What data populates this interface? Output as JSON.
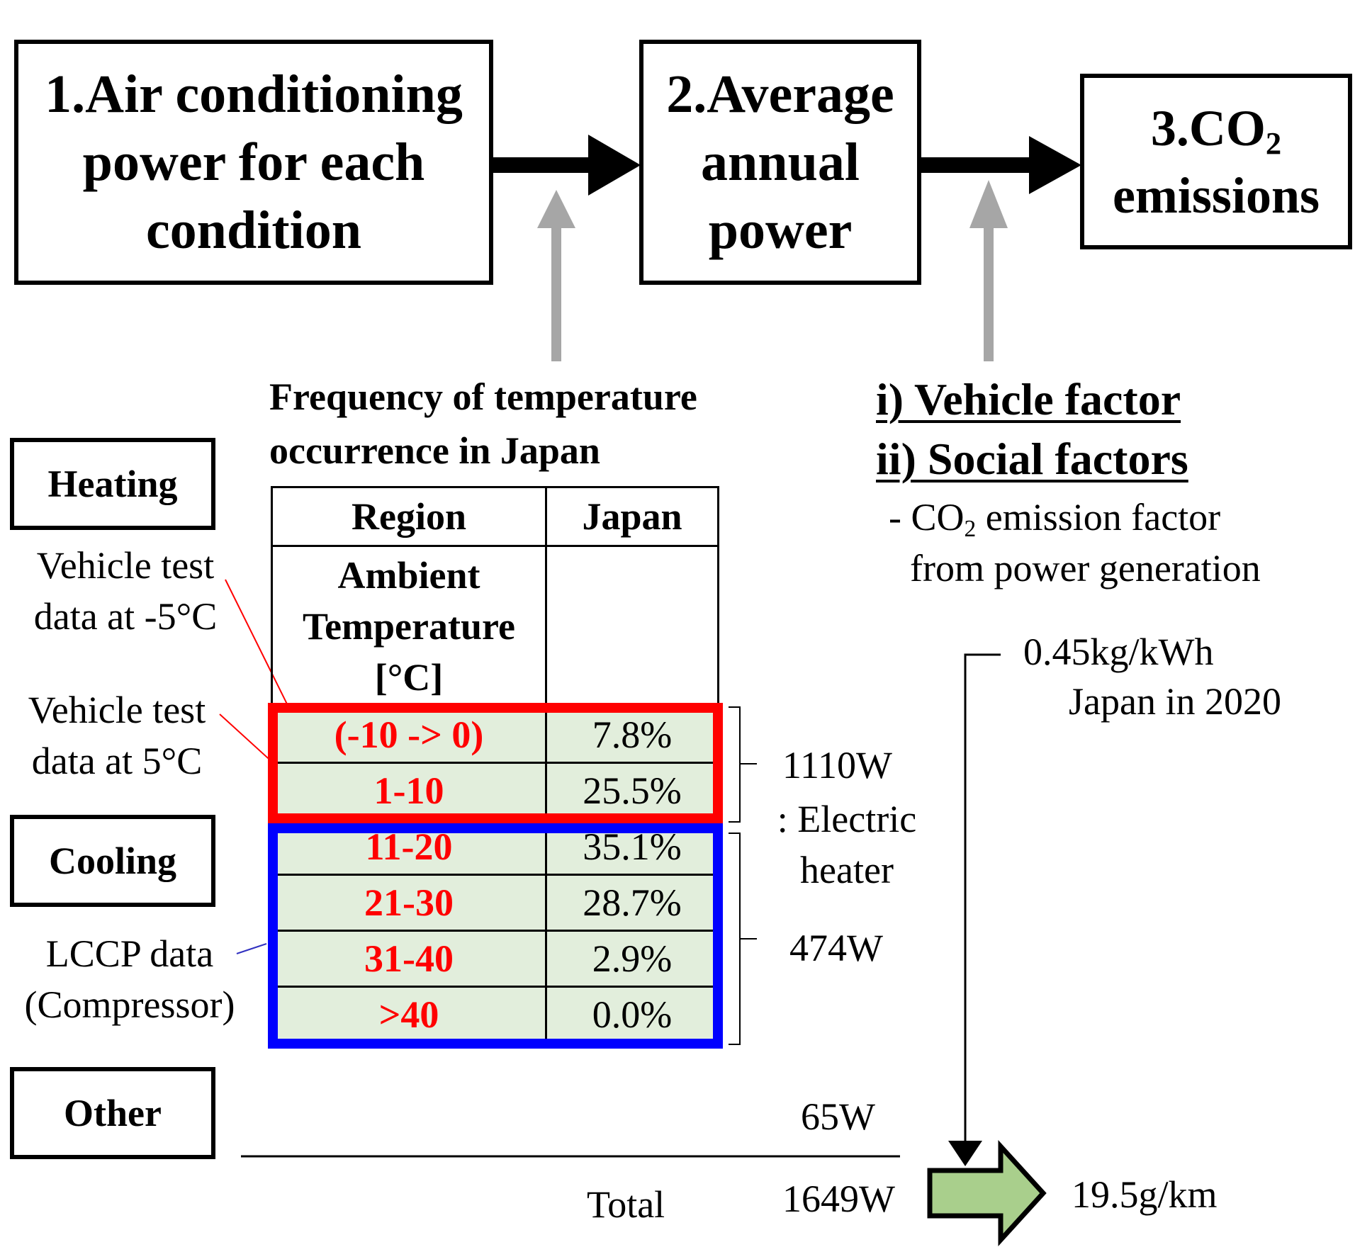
{
  "steps": [
    {
      "label": "1.Air conditioning power for each condition"
    },
    {
      "label": "2.Average annual power"
    },
    {
      "label_pre": "3.CO",
      "label_sub": "2",
      "label_post": "emissions"
    }
  ],
  "frequency_caption": "Frequency of temperature occurrence in Japan",
  "factors": {
    "vehicle": "i) Vehicle factor",
    "social": "ii) Social factors",
    "co2_pre": "- CO",
    "co2_sub": "2",
    "co2_post": " emission factor",
    "co2_line2": "from power generation"
  },
  "categories": {
    "heating": "Heating",
    "cooling": "Cooling",
    "other": "Other"
  },
  "notes": {
    "minus5_line1": "Vehicle test",
    "minus5_line2": "data at -5°C",
    "plus5_line1": "Vehicle test",
    "plus5_line2": "data at 5°C",
    "lccp_line1": "LCCP data",
    "lccp_line2": "(Compressor)"
  },
  "table": {
    "header_region": "Region",
    "header_japan": "Japan",
    "ambient_label": "Ambient Temperature [°C]",
    "rows": [
      {
        "range": "(-10 -> 0)",
        "pct": "7.8%"
      },
      {
        "range": "1-10",
        "pct": "25.5%"
      },
      {
        "range": "11-20",
        "pct": "35.1%"
      },
      {
        "range": "21-30",
        "pct": "28.7%"
      },
      {
        "range": "31-40",
        "pct": "2.9%"
      },
      {
        "range": ">40",
        "pct": "0.0%"
      }
    ]
  },
  "power": {
    "heating": "1110W",
    "heating_note_line1": ": Electric",
    "heating_note_line2": "heater",
    "cooling": "474W",
    "other": "65W",
    "total_label": "Total",
    "total": "1649W"
  },
  "emission_factor": {
    "value": "0.45kg/kWh",
    "note": "Japan in 2020"
  },
  "result": "19.5g/km",
  "colors": {
    "heating_frame": "#ff0000",
    "cooling_frame": "#0000ff",
    "table_fill": "#e2eedc",
    "result_arrow": "#a9cf8c",
    "input_arrow": "#a6a6a6"
  }
}
